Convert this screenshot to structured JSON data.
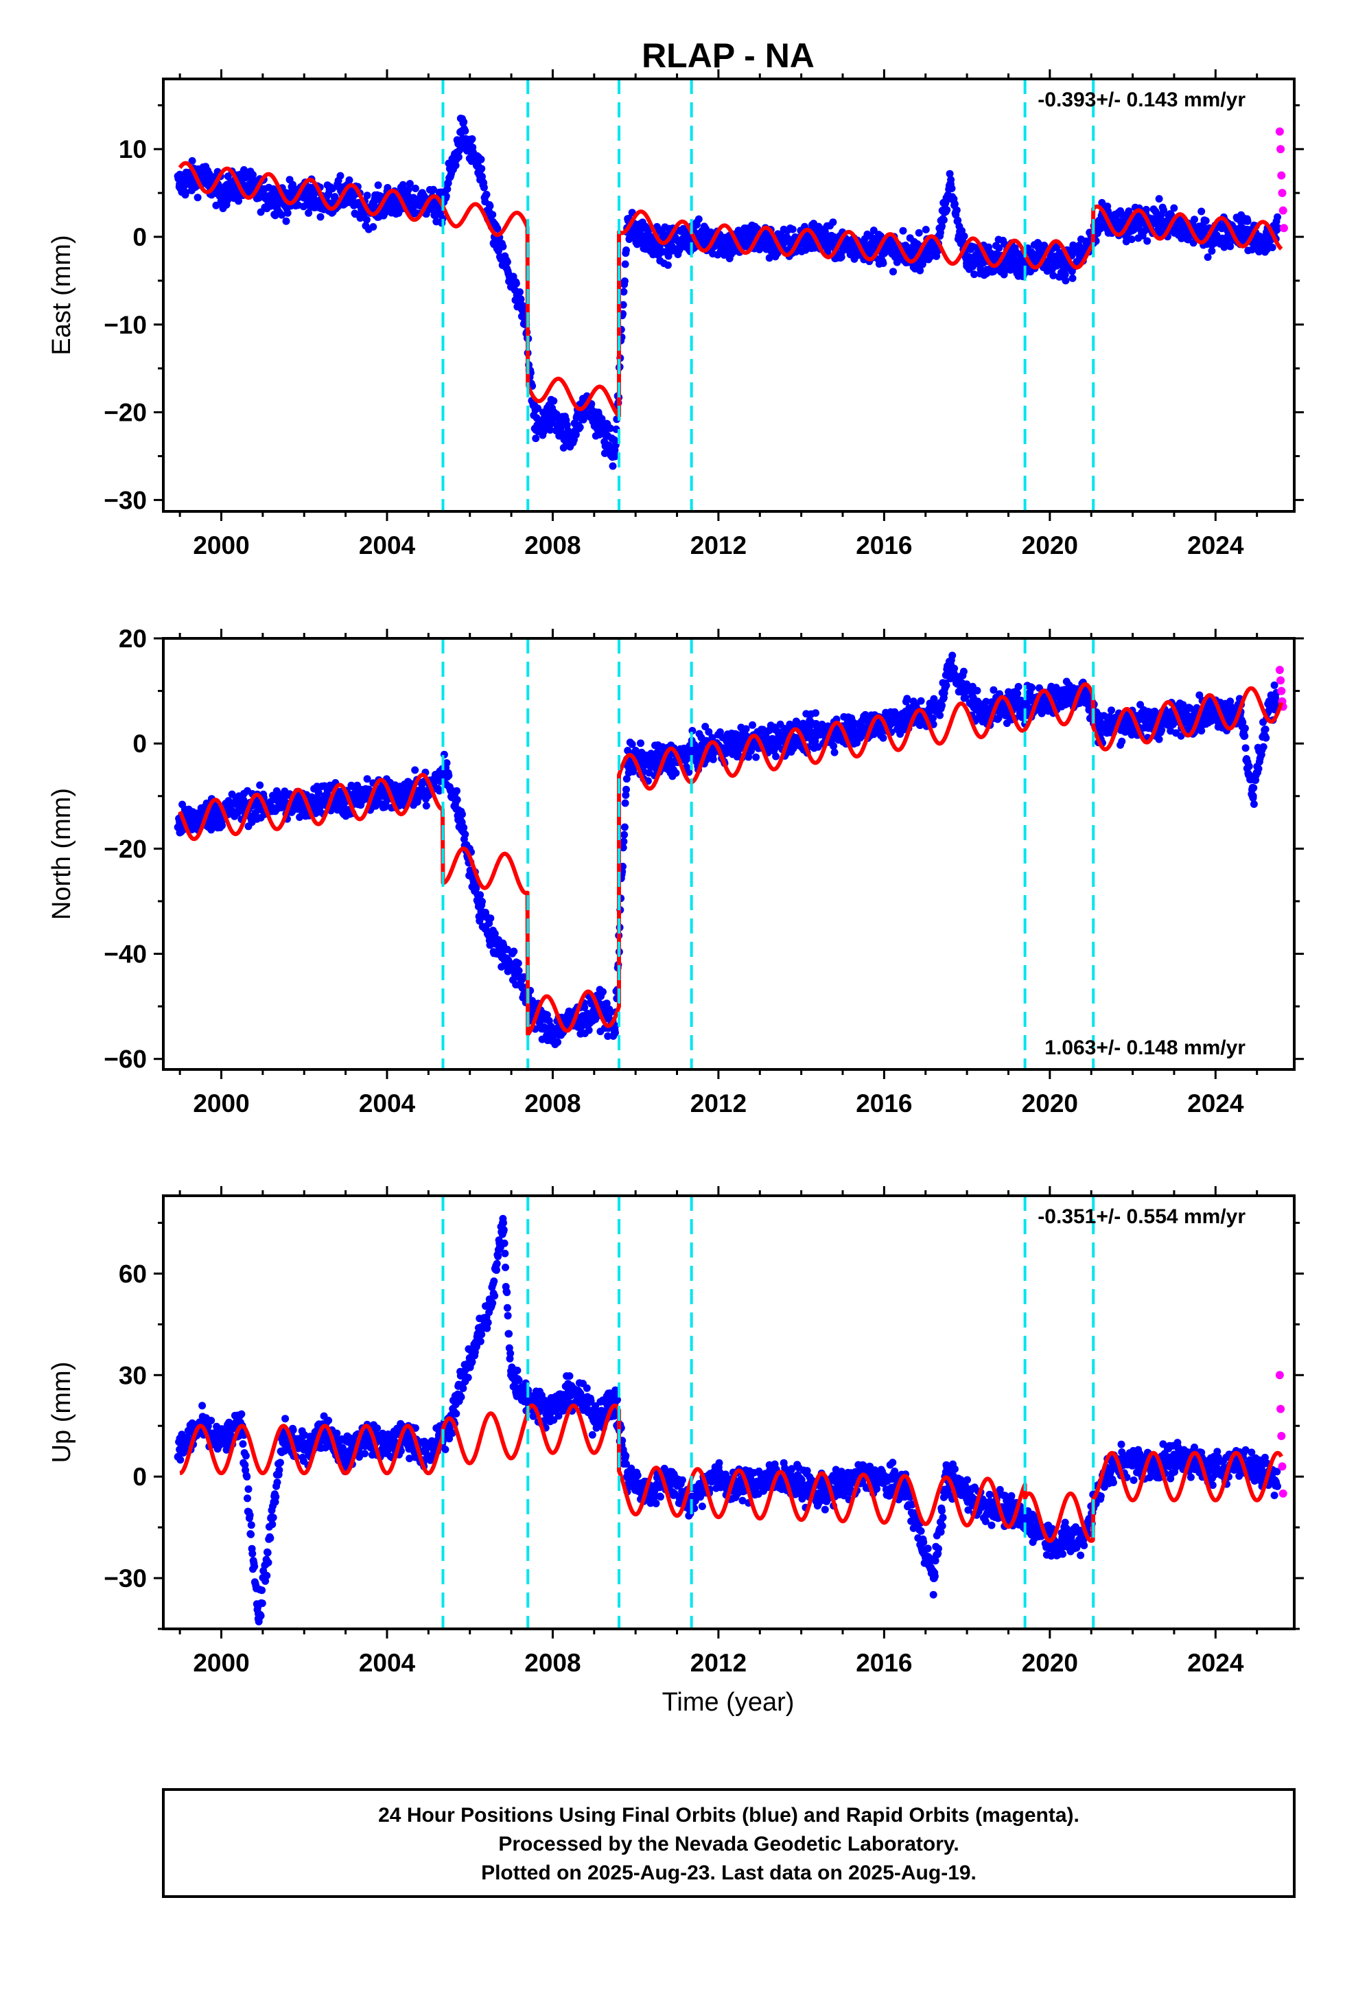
{
  "title": "RLAP - NA",
  "x_axis": {
    "label": "Time (year)",
    "ticks": [
      "2000",
      "2004",
      "2008",
      "2012",
      "2016",
      "2020",
      "2024"
    ],
    "tick_values": [
      2000,
      2004,
      2008,
      2012,
      2016,
      2020,
      2024
    ],
    "range": [
      1998.6,
      2025.9
    ]
  },
  "footer": {
    "line1": "24 Hour Positions Using Final Orbits (blue) and Rapid Orbits (magenta).",
    "line2": "Processed by the Nevada Geodetic Laboratory.",
    "line3": "Plotted on 2025-Aug-23. Last data on 2025-Aug-19."
  },
  "colors": {
    "final_orbits": "#0000ff",
    "rapid_orbits": "#ff00ff",
    "model_fit": "#ff0000",
    "offset_lines": "#00e5ee"
  },
  "chart_data": [
    {
      "type": "scatter",
      "ylabel": "East (mm)",
      "ylim": [
        -31.3,
        18
      ],
      "yticks": [
        10,
        0,
        -10,
        -20,
        -30
      ],
      "rate_text": "-0.393+/- 0.143 mm/yr",
      "offset_epochs": [
        2005.35,
        2007.4,
        2009.6,
        2011.35,
        2019.4,
        2021.05
      ],
      "series": [
        {
          "color": "blue",
          "x": [
            1999.0,
            1999.5,
            2000.0,
            2000.5,
            2001.0,
            2001.5,
            2002.0,
            2002.5,
            2003.0,
            2003.5,
            2004.0,
            2004.5,
            2005.0,
            2005.3,
            2005.8,
            2006.2,
            2006.6,
            2007.0,
            2007.35,
            2007.6,
            2008.0,
            2008.4,
            2008.8,
            2009.2,
            2009.5,
            2009.8,
            2010.3,
            2010.8,
            2011.3,
            2011.8,
            2012.3,
            2012.8,
            2013.5,
            2014.3,
            2015.0,
            2015.8,
            2016.5,
            2017.3,
            2017.6,
            2018.0,
            2018.7,
            2019.3,
            2019.7,
            2020.3,
            2020.8,
            2021.3,
            2021.8,
            2022.5,
            2023.2,
            2023.9,
            2024.6,
            2025.2,
            2025.5
          ],
          "y": [
            6,
            7,
            5,
            6,
            5,
            4,
            5,
            4,
            5,
            3,
            4,
            4,
            4,
            3,
            12,
            8,
            0,
            -5,
            -10,
            -22,
            -20,
            -23,
            -19,
            -22,
            -25,
            1,
            0,
            -1,
            0,
            0,
            -1,
            0,
            -1,
            0,
            -1,
            -1,
            -2,
            -1,
            6,
            -3,
            -2,
            -3,
            -2,
            -3,
            -2,
            2,
            1,
            2,
            1,
            0,
            1,
            -1,
            1
          ]
        },
        {
          "color": "magenta",
          "x": [
            2025.55,
            2025.57,
            2025.59,
            2025.61,
            2025.63,
            2025.65
          ],
          "y": [
            12,
            10,
            7,
            5,
            3,
            1
          ]
        }
      ],
      "model": [
        [
          1999.0,
          7
        ],
        [
          2005.35,
          3
        ],
        [
          2007.4,
          1
        ],
        [
          2007.4,
          -17
        ],
        [
          2009.6,
          -19
        ],
        [
          2009.6,
          2
        ],
        [
          2011.35,
          0
        ],
        [
          2019.4,
          -2
        ],
        [
          2021.05,
          -2
        ],
        [
          2021.05,
          2
        ],
        [
          2025.6,
          0
        ]
      ],
      "seasonal": {
        "amplitude": 1.5,
        "phase": 0.9,
        "trend_start": 2006.0
      }
    },
    {
      "type": "scatter",
      "ylabel": "North (mm)",
      "ylim": [
        -62,
        20
      ],
      "yticks": [
        20,
        0,
        -20,
        -40,
        -60
      ],
      "rate_text": "1.063+/- 0.148 mm/yr",
      "offset_epochs": [
        2005.35,
        2007.4,
        2009.6,
        2011.35,
        2019.4,
        2021.05
      ],
      "series": [
        {
          "color": "blue",
          "x": [
            1999.0,
            1999.5,
            2000.0,
            2000.5,
            2001.0,
            2001.5,
            2002.0,
            2002.5,
            2003.0,
            2003.5,
            2004.0,
            2004.5,
            2005.0,
            2005.4,
            2005.8,
            2006.2,
            2006.6,
            2007.0,
            2007.35,
            2007.6,
            2008.0,
            2008.4,
            2008.8,
            2009.2,
            2009.5,
            2009.8,
            2010.3,
            2010.8,
            2011.3,
            2011.8,
            2012.5,
            2013.5,
            2014.5,
            2015.5,
            2016.5,
            2017.3,
            2017.6,
            2018.3,
            2019.0,
            2019.7,
            2020.3,
            2020.8,
            2021.2,
            2021.8,
            2022.5,
            2023.2,
            2023.9,
            2024.6,
            2024.9,
            2025.3
          ],
          "y": [
            -15,
            -14,
            -13,
            -12,
            -12,
            -11,
            -12,
            -10,
            -11,
            -10,
            -10,
            -9,
            -9,
            -5,
            -15,
            -30,
            -38,
            -42,
            -47,
            -52,
            -55,
            -53,
            -52,
            -50,
            -55,
            -3,
            -4,
            -3,
            -2,
            -1,
            0,
            1,
            2,
            3,
            5,
            6,
            15,
            6,
            7,
            8,
            9,
            10,
            3,
            4,
            4,
            5,
            6,
            6,
            -10,
            8
          ]
        },
        {
          "color": "magenta",
          "x": [
            2025.55,
            2025.57,
            2025.59,
            2025.61,
            2025.63
          ],
          "y": [
            14,
            12,
            10,
            8,
            7
          ]
        }
      ],
      "model": [
        [
          1999.0,
          -15
        ],
        [
          2005.35,
          -9
        ],
        [
          2005.35,
          -23
        ],
        [
          2007.4,
          -25
        ],
        [
          2007.4,
          -52
        ],
        [
          2009.6,
          -50
        ],
        [
          2009.6,
          -6
        ],
        [
          2019.4,
          6
        ],
        [
          2021.05,
          8
        ],
        [
          2021.05,
          2
        ],
        [
          2025.6,
          8
        ]
      ],
      "seasonal": {
        "amplitude": 3.5,
        "phase": 0.6,
        "trend_start": 2006.0
      }
    },
    {
      "type": "scatter",
      "ylabel": "Up (mm)",
      "ylim": [
        -45,
        83
      ],
      "yticks": [
        60,
        30,
        0,
        -30
      ],
      "rate_text": "-0.351+/- 0.554 mm/yr",
      "offset_epochs": [
        2005.35,
        2007.4,
        2009.6,
        2011.35,
        2019.4,
        2021.05
      ],
      "series": [
        {
          "color": "blue",
          "x": [
            1999.0,
            1999.5,
            2000.0,
            2000.5,
            2000.9,
            2001.5,
            2002.0,
            2002.5,
            2003.0,
            2003.5,
            2004.0,
            2004.5,
            2005.0,
            2005.5,
            2006.0,
            2006.5,
            2006.8,
            2007.0,
            2007.5,
            2008.0,
            2008.5,
            2009.0,
            2009.5,
            2009.8,
            2010.3,
            2010.8,
            2011.3,
            2011.8,
            2012.5,
            2013.5,
            2014.5,
            2015.5,
            2016.5,
            2017.2,
            2017.5,
            2018.3,
            2019.0,
            2019.7,
            2020.2,
            2020.8,
            2021.3,
            2021.8,
            2022.5,
            2023.2,
            2023.9,
            2024.6,
            2025.3
          ],
          "y": [
            8,
            15,
            10,
            15,
            -42,
            12,
            8,
            14,
            6,
            12,
            8,
            12,
            6,
            15,
            35,
            50,
            75,
            30,
            22,
            20,
            25,
            18,
            22,
            0,
            -5,
            0,
            -8,
            0,
            -3,
            0,
            -5,
            0,
            -3,
            -30,
            0,
            -8,
            -10,
            -15,
            -20,
            -18,
            0,
            5,
            3,
            6,
            2,
            5,
            0
          ]
        },
        {
          "color": "magenta",
          "x": [
            2025.55,
            2025.57,
            2025.59,
            2025.61,
            2025.63
          ],
          "y": [
            30,
            20,
            12,
            3,
            -5
          ]
        }
      ],
      "model": [
        [
          1999.0,
          8
        ],
        [
          2005.35,
          8
        ],
        [
          2005.35,
          10
        ],
        [
          2007.4,
          13
        ],
        [
          2007.4,
          14
        ],
        [
          2009.6,
          14
        ],
        [
          2009.6,
          -4
        ],
        [
          2019.4,
          -8
        ],
        [
          2019.4,
          -12
        ],
        [
          2021.05,
          -12
        ],
        [
          2021.05,
          0
        ],
        [
          2025.6,
          0
        ]
      ],
      "seasonal": {
        "amplitude": 7,
        "phase": 0.25,
        "trend_start": 2005.0
      }
    }
  ]
}
